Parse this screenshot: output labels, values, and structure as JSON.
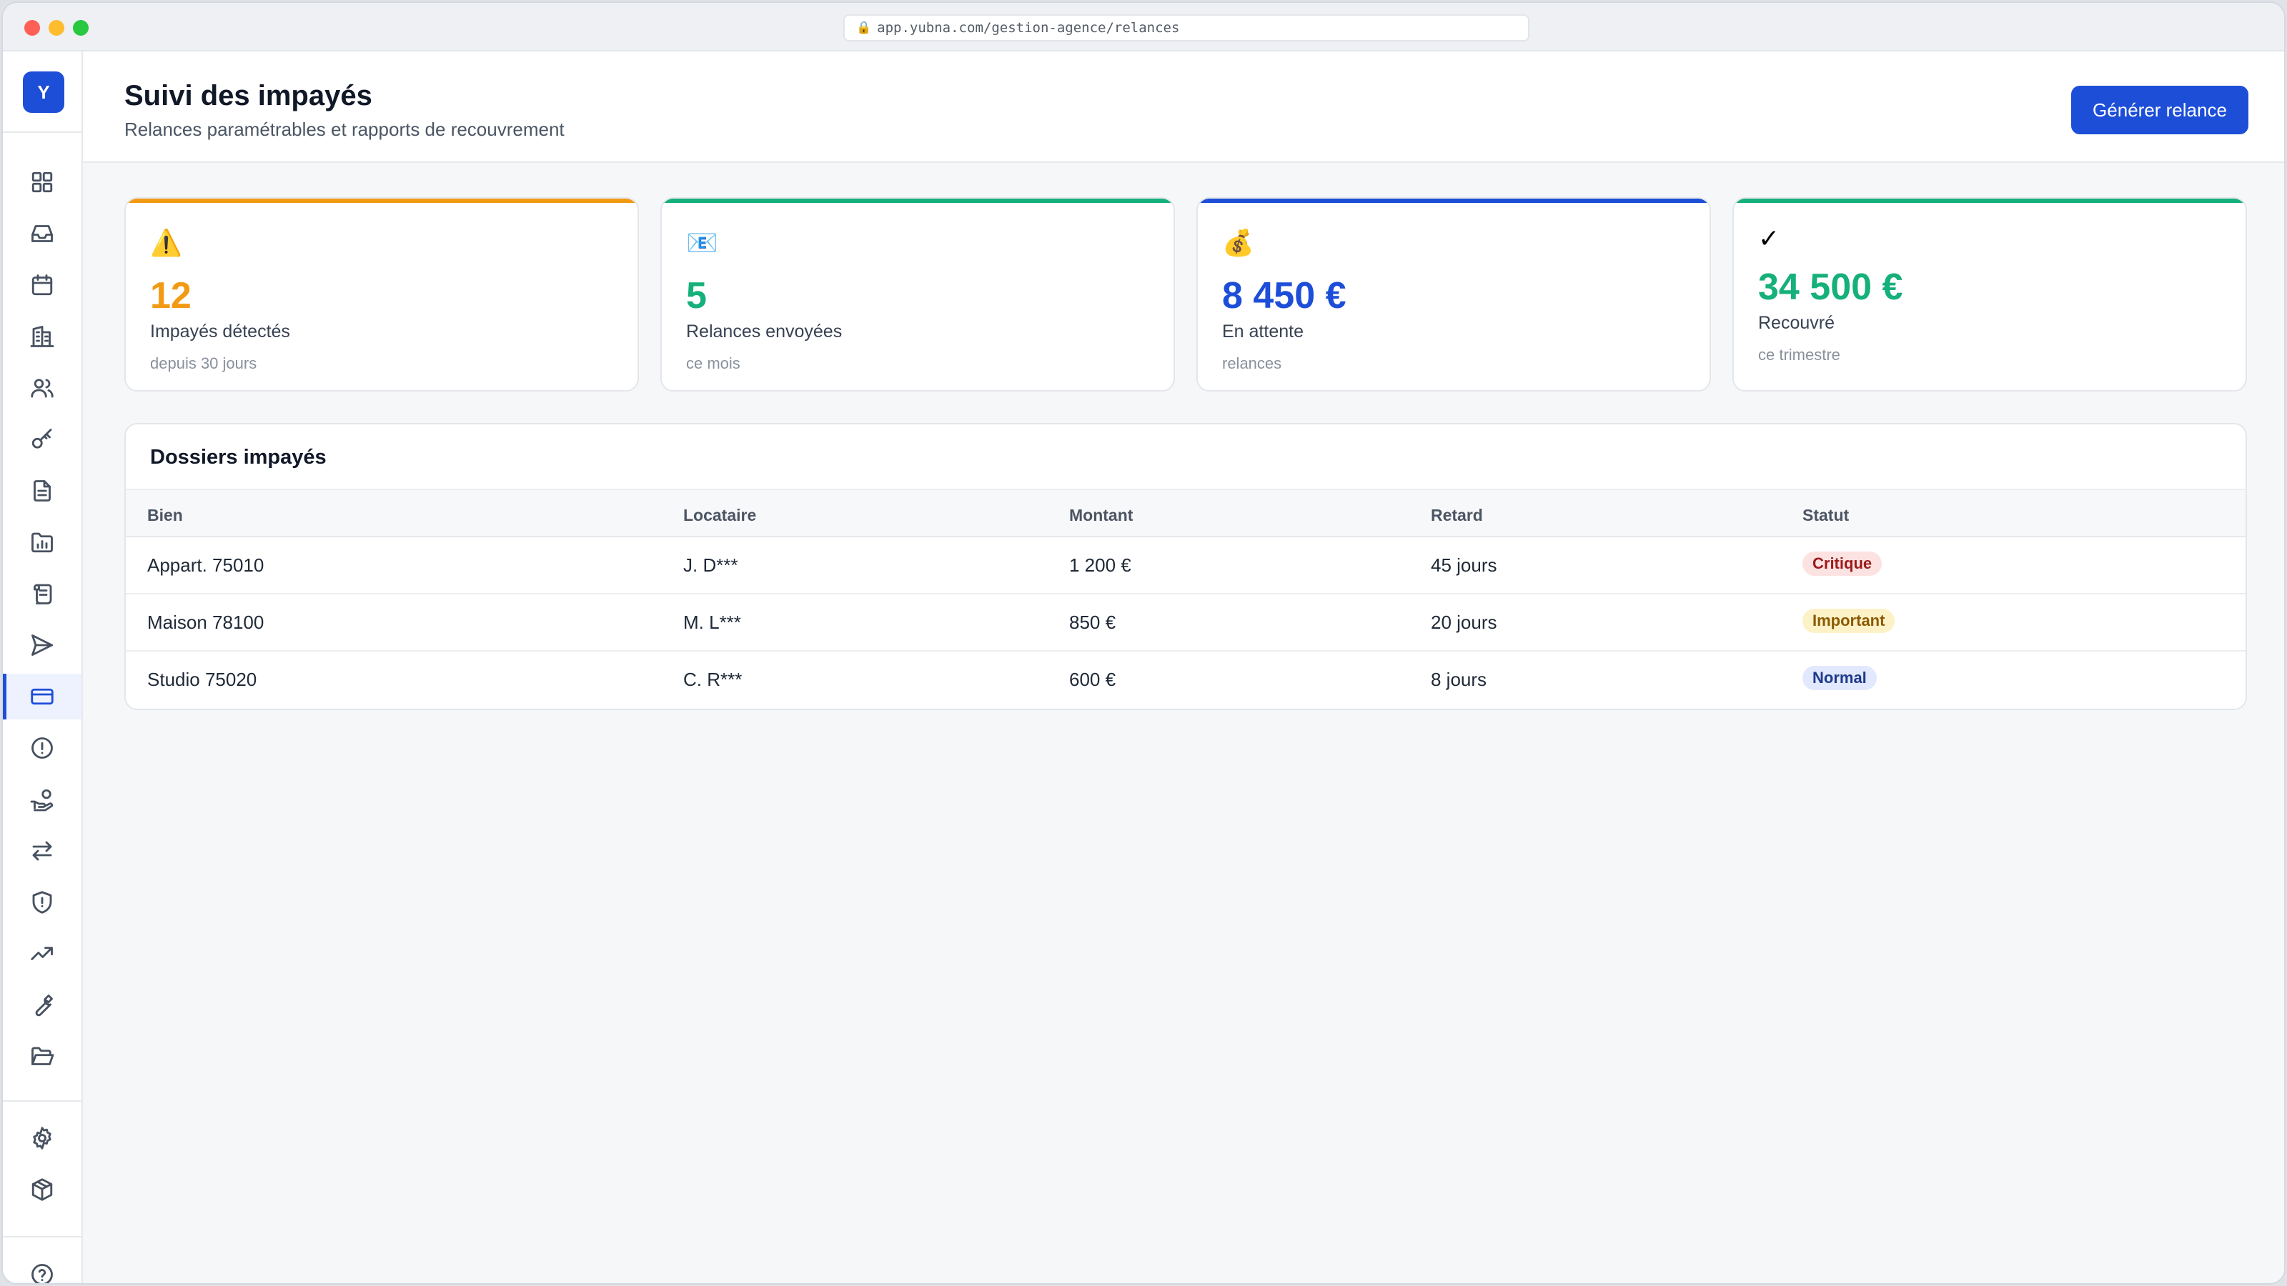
{
  "browser": {
    "url": "app.yubna.com/gestion-agence/relances"
  },
  "sidebar": {
    "logo_letter": "Y",
    "items": [
      {
        "icon": "grid-icon"
      },
      {
        "icon": "inbox-icon"
      },
      {
        "icon": "calendar-icon"
      },
      {
        "icon": "building-icon"
      },
      {
        "icon": "users-icon"
      },
      {
        "icon": "key-icon"
      },
      {
        "icon": "document-icon"
      },
      {
        "icon": "chart-folder-icon"
      },
      {
        "icon": "scroll-icon"
      },
      {
        "icon": "send-icon"
      },
      {
        "icon": "credit-card-icon",
        "active": true
      },
      {
        "icon": "alert-circle-icon"
      },
      {
        "icon": "hand-coins-icon"
      },
      {
        "icon": "arrows-exchange-icon"
      },
      {
        "icon": "shield-alert-icon"
      },
      {
        "icon": "trending-up-icon"
      },
      {
        "icon": "wrench-icon"
      },
      {
        "icon": "folder-open-icon"
      }
    ],
    "bottom_items": [
      {
        "icon": "gear-icon"
      },
      {
        "icon": "package-icon"
      },
      {
        "icon": "help-icon"
      }
    ]
  },
  "header": {
    "title": "Suivi des impayés",
    "subtitle": "Relances paramétrables et rapports de recouvrement",
    "action_label": "Générer relance"
  },
  "stats": [
    {
      "icon": "⚠️",
      "value": "12",
      "label": "Impayés détectés",
      "sub": "depuis 30 jours",
      "color": "#f29a13"
    },
    {
      "icon": "📧",
      "value": "5",
      "label": "Relances envoyées",
      "sub": "ce mois",
      "color": "#16b07a"
    },
    {
      "icon": "💰",
      "value": "8 450 €",
      "label": "En attente",
      "sub": "relances",
      "color": "#1d4ed8"
    },
    {
      "icon": "✓",
      "value": "34 500 €",
      "label": "Recouvré",
      "sub": "ce trimestre",
      "color": "#16b07a"
    }
  ],
  "table": {
    "title": "Dossiers impayés",
    "columns": [
      "Bien",
      "Locataire",
      "Montant",
      "Retard",
      "Statut"
    ],
    "rows": [
      {
        "bien": "Appart. 75010",
        "locataire": "J. D***",
        "montant": "1 200 €",
        "retard": "45 jours",
        "statut": "Critique",
        "level": "critical"
      },
      {
        "bien": "Maison 78100",
        "locataire": "M. L***",
        "montant": "850 €",
        "retard": "20 jours",
        "statut": "Important",
        "level": "important"
      },
      {
        "bien": "Studio 75020",
        "locataire": "C. R***",
        "montant": "600 €",
        "retard": "8 jours",
        "statut": "Normal",
        "level": "normal"
      }
    ]
  }
}
